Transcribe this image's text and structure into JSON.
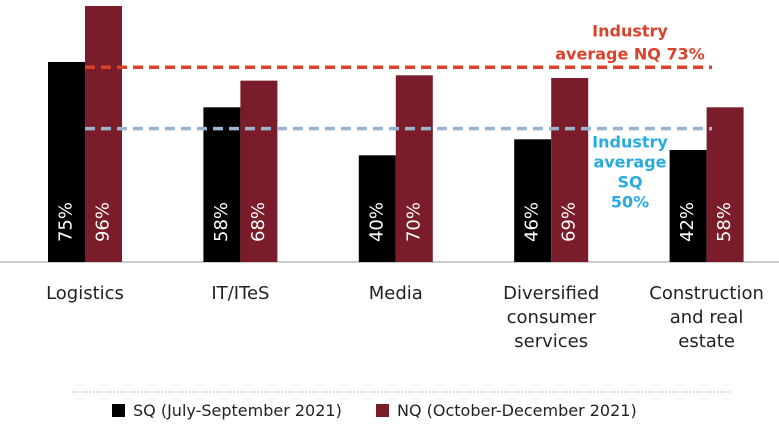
{
  "chart_data": {
    "type": "bar",
    "categories": [
      "Logistics",
      "IT/ITeS",
      "Media",
      "Diversified consumer services",
      "Construction and real estate"
    ],
    "series": [
      {
        "name": "SQ (July-September 2021)",
        "color": "#000000",
        "values": [
          75,
          58,
          40,
          46,
          42
        ],
        "value_labels": [
          "75%",
          "58%",
          "40%",
          "46%",
          "42%"
        ]
      },
      {
        "name": "NQ (October-December 2021)",
        "color": "#7b1c2a",
        "values": [
          96,
          68,
          70,
          69,
          58
        ],
        "value_labels": [
          "96%",
          "68%",
          "70%",
          "69%",
          "58%"
        ]
      }
    ],
    "ylim": [
      0,
      98
    ],
    "reference_lines": [
      {
        "value": 73,
        "color": "#d9432a",
        "label_color": "#d9432a",
        "label": [
          "Industry",
          "average  NQ 73%"
        ]
      },
      {
        "value": 50,
        "color": "#9bb5d0",
        "label_color": "#29abe2",
        "label": [
          "Industry",
          "average",
          "SQ",
          "50%"
        ]
      }
    ]
  }
}
